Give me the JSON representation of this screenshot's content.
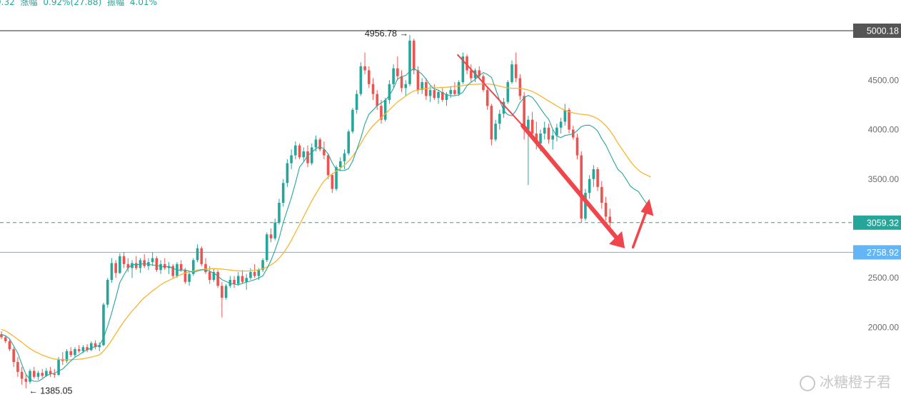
{
  "header": {
    "change_fragment": "9.32",
    "change_label": "涨幅",
    "change_value": "0.92%(27.88)",
    "amplitude_label": "振幅",
    "amplitude_value": "4.01%"
  },
  "watermark": {
    "text": "冰糖橙子君"
  },
  "colors": {
    "up": "#26a69a",
    "down": "#ef5350",
    "ma_short": "#26a69a",
    "ma_long": "#f5b731",
    "top_line": "#555555",
    "current_price": "#26a69a",
    "support": "#64b5f6",
    "arrow": "#f0454b"
  },
  "chart_data": {
    "type": "candlestick",
    "title": "",
    "xlabel": "",
    "ylabel": "",
    "ylim": [
      1350,
      5250
    ],
    "y_ticks": [
      {
        "value": 4500,
        "label": "4500.00"
      },
      {
        "value": 4000,
        "label": "4000.00"
      },
      {
        "value": 3500,
        "label": "3500.00"
      },
      {
        "value": 2500,
        "label": "2500.00"
      },
      {
        "value": 2000,
        "label": "2000.00"
      }
    ],
    "price_lines": [
      {
        "name": "top-level",
        "value": 5000.18,
        "label": "5000.18",
        "style": "solid"
      },
      {
        "name": "current-price",
        "value": 3059.32,
        "label": "3059.32",
        "style": "dashed"
      },
      {
        "name": "support-level",
        "value": 2758.92,
        "label": "2758.92",
        "style": "solid"
      }
    ],
    "annotations": [
      {
        "name": "high-marker",
        "label": "4956.78 →",
        "value": 4956.78,
        "candle_index": 100
      },
      {
        "name": "low-marker",
        "label": "← 1385.05",
        "value": 1385.05,
        "candle_index": 6
      }
    ],
    "candles": [
      [
        1930,
        1960,
        1880,
        1900
      ],
      [
        1900,
        1920,
        1840,
        1860
      ],
      [
        1860,
        1880,
        1760,
        1780
      ],
      [
        1780,
        1800,
        1600,
        1650
      ],
      [
        1650,
        1700,
        1500,
        1550
      ],
      [
        1550,
        1600,
        1420,
        1480
      ],
      [
        1480,
        1520,
        1385,
        1450
      ],
      [
        1450,
        1580,
        1430,
        1560
      ],
      [
        1560,
        1600,
        1480,
        1500
      ],
      [
        1500,
        1560,
        1470,
        1540
      ],
      [
        1540,
        1580,
        1490,
        1510
      ],
      [
        1510,
        1590,
        1500,
        1560
      ],
      [
        1560,
        1600,
        1500,
        1530
      ],
      [
        1530,
        1580,
        1490,
        1520
      ],
      [
        1520,
        1700,
        1510,
        1680
      ],
      [
        1680,
        1750,
        1620,
        1660
      ],
      [
        1660,
        1780,
        1640,
        1760
      ],
      [
        1760,
        1800,
        1700,
        1720
      ],
      [
        1720,
        1800,
        1700,
        1780
      ],
      [
        1780,
        1820,
        1740,
        1760
      ],
      [
        1760,
        1820,
        1740,
        1800
      ],
      [
        1800,
        1830,
        1750,
        1770
      ],
      [
        1770,
        1860,
        1760,
        1840
      ],
      [
        1840,
        1870,
        1780,
        1800
      ],
      [
        1800,
        1850,
        1760,
        1820
      ],
      [
        1820,
        2250,
        1810,
        2230
      ],
      [
        2230,
        2500,
        2200,
        2480
      ],
      [
        2480,
        2700,
        2450,
        2650
      ],
      [
        2650,
        2680,
        2500,
        2550
      ],
      [
        2550,
        2750,
        2540,
        2720
      ],
      [
        2720,
        2760,
        2600,
        2640
      ],
      [
        2640,
        2700,
        2560,
        2600
      ],
      [
        2600,
        2680,
        2500,
        2650
      ],
      [
        2650,
        2720,
        2580,
        2600
      ],
      [
        2600,
        2700,
        2550,
        2680
      ],
      [
        2680,
        2740,
        2600,
        2620
      ],
      [
        2620,
        2700,
        2580,
        2660
      ],
      [
        2660,
        2760,
        2620,
        2700
      ],
      [
        2700,
        2720,
        2560,
        2580
      ],
      [
        2580,
        2680,
        2540,
        2640
      ],
      [
        2640,
        2700,
        2580,
        2600
      ],
      [
        2600,
        2660,
        2540,
        2620
      ],
      [
        2620,
        2640,
        2500,
        2520
      ],
      [
        2520,
        2660,
        2500,
        2640
      ],
      [
        2640,
        2680,
        2560,
        2580
      ],
      [
        2580,
        2600,
        2440,
        2460
      ],
      [
        2460,
        2560,
        2420,
        2540
      ],
      [
        2540,
        2700,
        2520,
        2680
      ],
      [
        2680,
        2840,
        2660,
        2800
      ],
      [
        2800,
        2820,
        2620,
        2640
      ],
      [
        2640,
        2700,
        2540,
        2560
      ],
      [
        2560,
        2620,
        2440,
        2480
      ],
      [
        2480,
        2600,
        2460,
        2560
      ],
      [
        2560,
        2580,
        2400,
        2420
      ],
      [
        2420,
        2460,
        2100,
        2300
      ],
      [
        2300,
        2440,
        2280,
        2420
      ],
      [
        2420,
        2520,
        2400,
        2480
      ],
      [
        2480,
        2520,
        2400,
        2440
      ],
      [
        2440,
        2560,
        2420,
        2520
      ],
      [
        2520,
        2580,
        2440,
        2460
      ],
      [
        2460,
        2540,
        2380,
        2500
      ],
      [
        2500,
        2600,
        2480,
        2560
      ],
      [
        2560,
        2640,
        2500,
        2520
      ],
      [
        2520,
        2600,
        2480,
        2580
      ],
      [
        2580,
        2700,
        2560,
        2680
      ],
      [
        2680,
        2960,
        2660,
        2940
      ],
      [
        2940,
        3000,
        2860,
        2900
      ],
      [
        2900,
        3100,
        2880,
        3060
      ],
      [
        3060,
        3300,
        3040,
        3260
      ],
      [
        3260,
        3500,
        3220,
        3460
      ],
      [
        3460,
        3700,
        3420,
        3660
      ],
      [
        3660,
        3800,
        3600,
        3740
      ],
      [
        3740,
        3880,
        3700,
        3840
      ],
      [
        3840,
        3860,
        3700,
        3720
      ],
      [
        3720,
        3820,
        3680,
        3780
      ],
      [
        3780,
        3840,
        3620,
        3660
      ],
      [
        3660,
        3860,
        3640,
        3820
      ],
      [
        3820,
        3940,
        3780,
        3900
      ],
      [
        3900,
        3920,
        3780,
        3800
      ],
      [
        3800,
        3880,
        3700,
        3740
      ],
      [
        3740,
        3760,
        3500,
        3540
      ],
      [
        3540,
        3560,
        3360,
        3400
      ],
      [
        3400,
        3640,
        3380,
        3620
      ],
      [
        3620,
        3720,
        3580,
        3680
      ],
      [
        3680,
        3800,
        3600,
        3760
      ],
      [
        3760,
        4000,
        3740,
        3980
      ],
      [
        3980,
        4220,
        3960,
        4200
      ],
      [
        4200,
        4400,
        4160,
        4360
      ],
      [
        4360,
        4680,
        4340,
        4640
      ],
      [
        4640,
        4780,
        4560,
        4600
      ],
      [
        4600,
        4640,
        4420,
        4460
      ],
      [
        4460,
        4520,
        4300,
        4360
      ],
      [
        4360,
        4400,
        4200,
        4240
      ],
      [
        4240,
        4300,
        4060,
        4100
      ],
      [
        4100,
        4320,
        4080,
        4300
      ],
      [
        4300,
        4500,
        4260,
        4460
      ],
      [
        4460,
        4660,
        4420,
        4620
      ],
      [
        4620,
        4740,
        4500,
        4540
      ],
      [
        4540,
        4600,
        4380,
        4420
      ],
      [
        4420,
        4500,
        4340,
        4460
      ],
      [
        4460,
        4956.78,
        4440,
        4900
      ],
      [
        4900,
        4920,
        4560,
        4600
      ],
      [
        4600,
        4640,
        4360,
        4400
      ],
      [
        4400,
        4520,
        4360,
        4480
      ],
      [
        4480,
        4520,
        4300,
        4340
      ],
      [
        4340,
        4440,
        4280,
        4400
      ],
      [
        4400,
        4460,
        4300,
        4320
      ],
      [
        4320,
        4400,
        4260,
        4380
      ],
      [
        4380,
        4420,
        4280,
        4300
      ],
      [
        4300,
        4380,
        4240,
        4360
      ],
      [
        4360,
        4440,
        4320,
        4400
      ],
      [
        4400,
        4480,
        4340,
        4360
      ],
      [
        4360,
        4500,
        4340,
        4480
      ],
      [
        4480,
        4780,
        4460,
        4740
      ],
      [
        4740,
        4760,
        4560,
        4600
      ],
      [
        4600,
        4660,
        4480,
        4520
      ],
      [
        4520,
        4620,
        4480,
        4600
      ],
      [
        4600,
        4640,
        4520,
        4540
      ],
      [
        4540,
        4560,
        4380,
        4400
      ],
      [
        4400,
        4420,
        4200,
        4240
      ],
      [
        4240,
        4260,
        3840,
        3900
      ],
      [
        3900,
        4100,
        3880,
        4060
      ],
      [
        4060,
        4200,
        4000,
        4160
      ],
      [
        4160,
        4320,
        4120,
        4280
      ],
      [
        4280,
        4500,
        4260,
        4480
      ],
      [
        4480,
        4700,
        4460,
        4660
      ],
      [
        4660,
        4780,
        4480,
        4520
      ],
      [
        4520,
        4560,
        4300,
        4340
      ],
      [
        4340,
        4380,
        3900,
        4000
      ],
      [
        4000,
        4140,
        3440,
        4100
      ],
      [
        4100,
        4180,
        3900,
        3960
      ],
      [
        3960,
        4080,
        3800,
        3860
      ],
      [
        3860,
        4000,
        3780,
        3960
      ],
      [
        3960,
        4080,
        3900,
        4020
      ],
      [
        4020,
        4060,
        3860,
        3900
      ],
      [
        3900,
        4000,
        3800,
        3940
      ],
      [
        3940,
        4060,
        3880,
        4020
      ],
      [
        4020,
        4120,
        3960,
        4080
      ],
      [
        4080,
        4260,
        4040,
        4200
      ],
      [
        4200,
        4220,
        3960,
        4000
      ],
      [
        4000,
        4040,
        3900,
        3920
      ],
      [
        3920,
        3960,
        3700,
        3740
      ],
      [
        3740,
        3780,
        3060,
        3100
      ],
      [
        3100,
        3400,
        3080,
        3360
      ],
      [
        3360,
        3540,
        3300,
        3500
      ],
      [
        3500,
        3640,
        3420,
        3600
      ],
      [
        3600,
        3620,
        3380,
        3420
      ],
      [
        3420,
        3480,
        3200,
        3260
      ],
      [
        3260,
        3320,
        3080,
        3120
      ],
      [
        3120,
        3200,
        2980,
        3059.32
      ]
    ],
    "ma_short": [
      1930,
      1915,
      1885,
      1812,
      1740,
      1625,
      1525,
      1475,
      1455,
      1455,
      1480,
      1510,
      1530,
      1535,
      1562,
      1578,
      1620,
      1661,
      1698,
      1723,
      1752,
      1774,
      1791,
      1808,
      1818,
      1893,
      2010,
      2146,
      2298,
      2455,
      2531,
      2599,
      2635,
      2634,
      2637,
      2647,
      2635,
      2632,
      2625,
      2617,
      2614,
      2613,
      2597,
      2580,
      2578,
      2581,
      2568,
      2557,
      2570,
      2582,
      2580,
      2568,
      2549,
      2519,
      2482,
      2465,
      2444,
      2438,
      2429,
      2447,
      2458,
      2469,
      2482,
      2500,
      2521,
      2593,
      2676,
      2779,
      2902,
      3061,
      3186,
      3313,
      3460,
      3621,
      3674,
      3736,
      3768,
      3808,
      3826,
      3806,
      3753,
      3665,
      3597,
      3587,
      3586,
      3606,
      3682,
      3795,
      3915,
      4058,
      4157,
      4197,
      4241,
      4270,
      4297,
      4345,
      4416,
      4512,
      4535,
      4548,
      4589,
      4618,
      4592,
      4560,
      4510,
      4449,
      4412,
      4400,
      4369,
      4355,
      4342,
      4343,
      4351,
      4379,
      4444,
      4479,
      4508,
      4547,
      4577,
      4558,
      4527,
      4413,
      4294,
      4193,
      4151,
      4140,
      4192,
      4276,
      4322,
      4346,
      4326,
      4275,
      4214,
      4154,
      4105,
      4004,
      3934,
      3920,
      3941,
      3948,
      3957,
      3990,
      4030,
      4044,
      4045,
      4023,
      3986,
      3908,
      3844,
      3757,
      3674,
      3595,
      3560,
      3496,
      3429,
      3397,
      3373,
      3310,
      3249,
      3180
    ],
    "ma_long": [
      1980,
      1965,
      1940,
      1910,
      1880,
      1850,
      1815,
      1785,
      1760,
      1740,
      1720,
      1705,
      1690,
      1680,
      1675,
      1672,
      1672,
      1673,
      1675,
      1678,
      1682,
      1690,
      1700,
      1710,
      1722,
      1760,
      1810,
      1870,
      1935,
      2000,
      2060,
      2115,
      2165,
      2210,
      2260,
      2300,
      2335,
      2370,
      2400,
      2430,
      2455,
      2475,
      2495,
      2515,
      2535,
      2550,
      2560,
      2570,
      2580,
      2585,
      2590,
      2592,
      2594,
      2593,
      2590,
      2585,
      2580,
      2575,
      2572,
      2570,
      2570,
      2572,
      2576,
      2582,
      2592,
      2610,
      2632,
      2660,
      2700,
      2750,
      2810,
      2880,
      2960,
      3040,
      3120,
      3200,
      3280,
      3350,
      3420,
      3480,
      3520,
      3550,
      3580,
      3610,
      3640,
      3680,
      3730,
      3790,
      3860,
      3930,
      3990,
      4040,
      4080,
      4120,
      4160,
      4200,
      4240,
      4280,
      4310,
      4340,
      4370,
      4390,
      4400,
      4410,
      4415,
      4420,
      4422,
      4424,
      4426,
      4428,
      4432,
      4436,
      4440,
      4446,
      4452,
      4456,
      4458,
      4460,
      4462,
      4462,
      4458,
      4450,
      4440,
      4430,
      4422,
      4418,
      4418,
      4416,
      4410,
      4400,
      4385,
      4365,
      4340,
      4315,
      4290,
      4265,
      4240,
      4215,
      4195,
      4180,
      4170,
      4160,
      4155,
      4150,
      4145,
      4130,
      4110,
      4080,
      4040,
      3990,
      3930,
      3860,
      3800,
      3740,
      3680,
      3630,
      3590,
      3560,
      3540,
      3520
    ],
    "arrows": [
      {
        "name": "down-arrow-thin",
        "from": [
          112,
          4760
        ],
        "to": [
          128,
          4040
        ],
        "style": "thin"
      },
      {
        "name": "down-arrow-thick",
        "from": [
          128,
          4040
        ],
        "to": [
          153,
          2800
        ],
        "style": "thick"
      },
      {
        "name": "up-arrow",
        "from": [
          155,
          2810
        ],
        "to": [
          159,
          3300
        ],
        "style": "medium"
      }
    ]
  }
}
